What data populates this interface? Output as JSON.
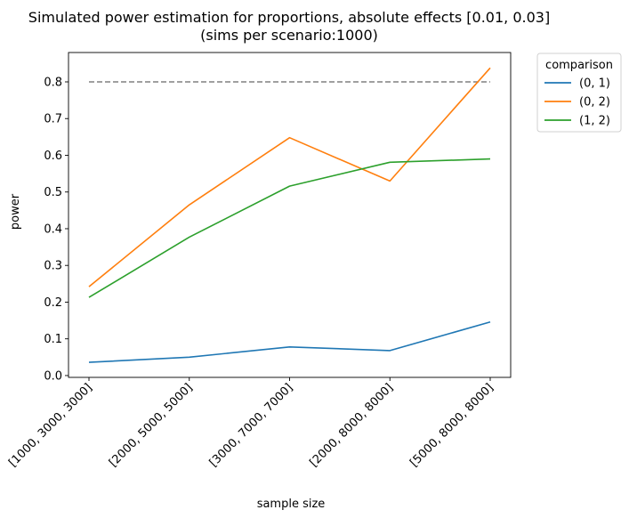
{
  "chart_data": {
    "type": "line",
    "title": "Simulated power estimation for proportions, absolute effects [0.01, 0.03]",
    "subtitle": "(sims per scenario:1000)",
    "xlabel": "sample size",
    "ylabel": "power",
    "categories": [
      "[1000, 3000, 3000]",
      "[2000, 5000, 5000]",
      "[3000, 7000, 7000]",
      "[2000, 8000, 8000]",
      "[5000, 8000, 8000]"
    ],
    "ylim": [
      -0.005,
      0.88
    ],
    "yticks": [
      0.0,
      0.1,
      0.2,
      0.3,
      0.4,
      0.5,
      0.6,
      0.7,
      0.8
    ],
    "ytick_labels": [
      "0.0",
      "0.1",
      "0.2",
      "0.3",
      "0.4",
      "0.5",
      "0.6",
      "0.7",
      "0.8"
    ],
    "reference_line": {
      "y": 0.8,
      "style": "dashed",
      "color": "#808080"
    },
    "legend": {
      "title": "comparison",
      "placement": "outside-upper-right"
    },
    "series": [
      {
        "name": "(0, 1)",
        "color": "#1f77b4",
        "values": [
          0.036,
          0.05,
          0.078,
          0.068,
          0.146
        ]
      },
      {
        "name": "(0, 2)",
        "color": "#ff7f0e",
        "values": [
          0.242,
          0.465,
          0.648,
          0.53,
          0.838
        ]
      },
      {
        "name": "(1, 2)",
        "color": "#2ca02c",
        "values": [
          0.213,
          0.377,
          0.516,
          0.581,
          0.59
        ]
      }
    ],
    "grid": false
  }
}
